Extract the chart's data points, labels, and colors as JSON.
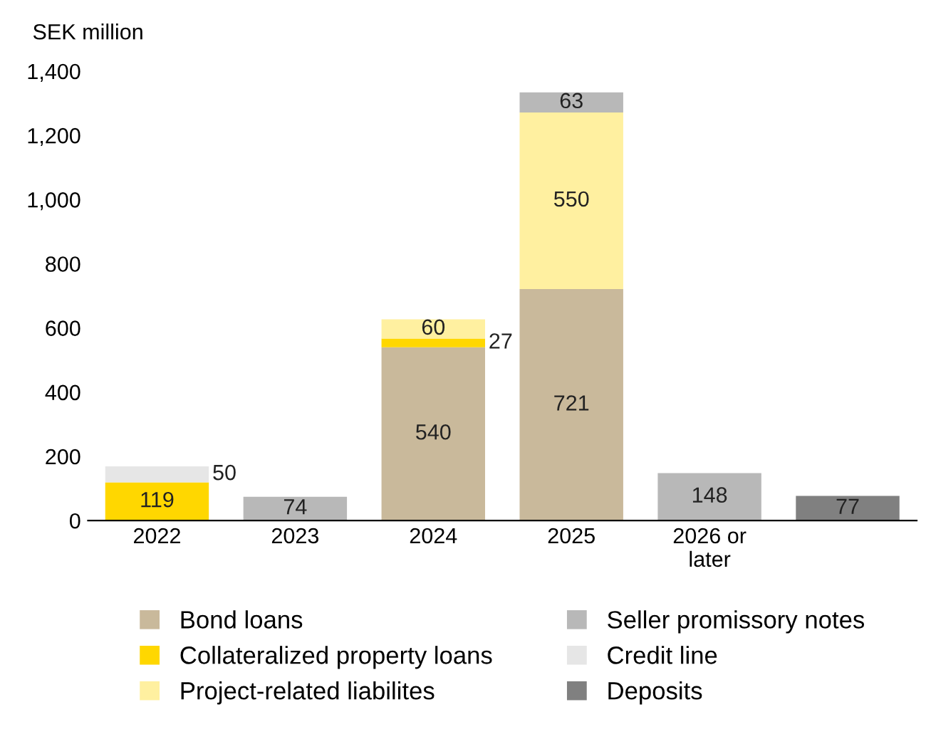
{
  "chart_data": {
    "type": "bar",
    "stacked": true,
    "ylabel": "SEK million",
    "categories": [
      "2022",
      "2023",
      "2024",
      "2025",
      "2026 or\nlater",
      null
    ],
    "series": [
      {
        "name": "Bond loans",
        "color": "#c9b99b",
        "values": [
          null,
          null,
          540,
          721,
          null,
          null
        ]
      },
      {
        "name": "Collateralized property loans",
        "color": "#ffd700",
        "values": [
          119,
          null,
          27,
          null,
          null,
          null
        ]
      },
      {
        "name": "Project-related liabilites",
        "color": "#fff0a0",
        "values": [
          null,
          null,
          60,
          550,
          null,
          null
        ]
      },
      {
        "name": "Seller promissory notes",
        "color": "#b8b8b8",
        "values": [
          null,
          74,
          null,
          63,
          148,
          null
        ]
      },
      {
        "name": "Credit line",
        "color": "#e6e6e6",
        "values": [
          50,
          null,
          null,
          null,
          null,
          null
        ]
      },
      {
        "name": "Deposits",
        "color": "#808080",
        "values": [
          null,
          null,
          null,
          null,
          null,
          77
        ]
      }
    ],
    "ylim": [
      0,
      1400
    ],
    "yticks": [
      0,
      200,
      400,
      600,
      800,
      {
        "value": 1000,
        "label": "1,000"
      },
      {
        "value": 1200,
        "label": "1,200"
      },
      {
        "value": 1400,
        "label": "1,400"
      }
    ],
    "data_labels": true,
    "legend": "bottom"
  }
}
